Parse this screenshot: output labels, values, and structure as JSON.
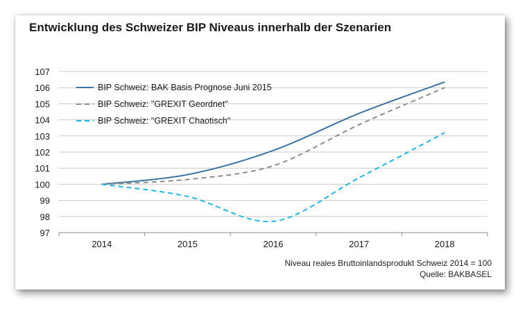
{
  "chart_data": {
    "type": "line",
    "title": "Entwicklung des Schweizer BIP Niveaus innerhalb der Szenarien",
    "categories": [
      "2014",
      "2015",
      "2016",
      "2017",
      "2018"
    ],
    "ylim": [
      97,
      107
    ],
    "yticks": [
      "97",
      "98",
      "99",
      "100",
      "101",
      "102",
      "103",
      "104",
      "105",
      "106",
      "107"
    ],
    "grid": true,
    "legend_position": "top-left",
    "series": [
      {
        "name": "BIP Schweiz: BAK Basis Prognose Juni 2015",
        "values": [
          100,
          100.6,
          102.1,
          104.4,
          106.35
        ],
        "color": "#3c74a5",
        "style": "solid"
      },
      {
        "name": "BIP Schweiz: \"GREXIT Geordnet\"",
        "values": [
          100,
          100.3,
          101.15,
          103.7,
          106.0
        ],
        "color": "#8c8c8c",
        "style": "dashed"
      },
      {
        "name": "BIP Schweiz: \"GREXIT Chaotisch\"",
        "values": [
          100,
          99.25,
          97.7,
          100.4,
          103.2
        ],
        "color": "#1ab7ea",
        "style": "dashed"
      }
    ],
    "footnote": "Niveau reales Bruttoinlandsprodukt Schweiz 2014 = 100",
    "source": "Quelle: BAKBASEL"
  }
}
